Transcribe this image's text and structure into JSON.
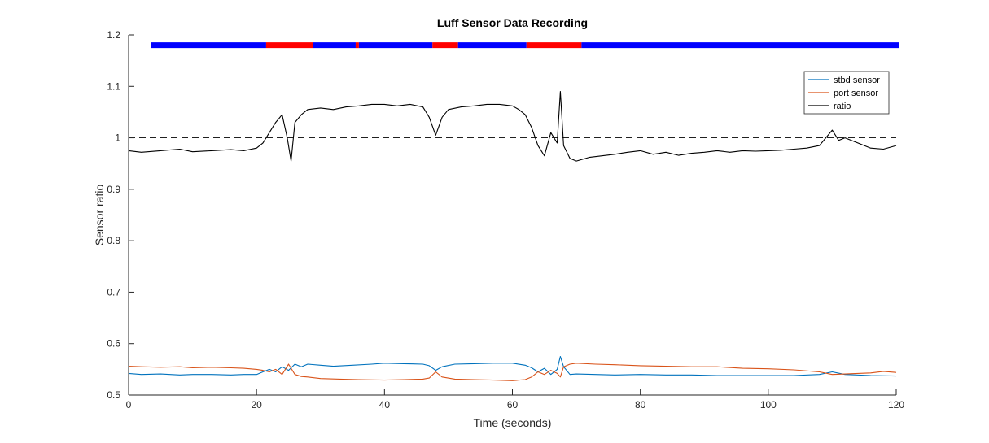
{
  "chart_data": {
    "type": "line",
    "title": "Luff Sensor Data Recording",
    "xlabel": "Time (seconds)",
    "ylabel": "Sensor ratio",
    "xlim": [
      0,
      120
    ],
    "ylim": [
      0.5,
      1.2
    ],
    "x_ticks": [
      "0",
      "20",
      "40",
      "60",
      "80",
      "100",
      "120"
    ],
    "y_ticks": [
      "0.5",
      "0.6",
      "0.7",
      "0.8",
      "0.9",
      "1",
      "1.1",
      "1.2"
    ],
    "grid": false,
    "legend_position": "top-right",
    "reference_line": {
      "y": 1.0,
      "style": "dashed",
      "color": "#000000"
    },
    "series": [
      {
        "name": "stbd sensor",
        "color": "#0072BD",
        "points": [
          [
            0,
            0.542
          ],
          [
            2,
            0.54
          ],
          [
            5,
            0.541
          ],
          [
            8,
            0.539
          ],
          [
            10,
            0.54
          ],
          [
            13,
            0.54
          ],
          [
            16,
            0.539
          ],
          [
            18,
            0.54
          ],
          [
            20,
            0.54
          ],
          [
            21,
            0.545
          ],
          [
            22,
            0.55
          ],
          [
            23,
            0.545
          ],
          [
            24,
            0.555
          ],
          [
            25,
            0.548
          ],
          [
            26,
            0.56
          ],
          [
            27,
            0.555
          ],
          [
            28,
            0.56
          ],
          [
            30,
            0.558
          ],
          [
            32,
            0.556
          ],
          [
            35,
            0.558
          ],
          [
            38,
            0.56
          ],
          [
            40,
            0.562
          ],
          [
            43,
            0.561
          ],
          [
            46,
            0.56
          ],
          [
            47,
            0.557
          ],
          [
            48,
            0.548
          ],
          [
            49,
            0.555
          ],
          [
            51,
            0.56
          ],
          [
            54,
            0.561
          ],
          [
            57,
            0.562
          ],
          [
            60,
            0.562
          ],
          [
            62,
            0.558
          ],
          [
            63,
            0.553
          ],
          [
            64,
            0.545
          ],
          [
            65,
            0.552
          ],
          [
            66,
            0.54
          ],
          [
            67,
            0.55
          ],
          [
            67.5,
            0.575
          ],
          [
            68,
            0.555
          ],
          [
            69,
            0.54
          ],
          [
            70,
            0.541
          ],
          [
            73,
            0.54
          ],
          [
            76,
            0.539
          ],
          [
            80,
            0.54
          ],
          [
            84,
            0.539
          ],
          [
            88,
            0.539
          ],
          [
            92,
            0.538
          ],
          [
            96,
            0.538
          ],
          [
            100,
            0.538
          ],
          [
            104,
            0.538
          ],
          [
            108,
            0.54
          ],
          [
            110,
            0.545
          ],
          [
            112,
            0.54
          ],
          [
            116,
            0.538
          ],
          [
            120,
            0.537
          ]
        ]
      },
      {
        "name": "port sensor",
        "color": "#D95319",
        "points": [
          [
            0,
            0.556
          ],
          [
            2,
            0.555
          ],
          [
            5,
            0.554
          ],
          [
            8,
            0.555
          ],
          [
            10,
            0.553
          ],
          [
            13,
            0.554
          ],
          [
            16,
            0.553
          ],
          [
            18,
            0.552
          ],
          [
            20,
            0.55
          ],
          [
            21,
            0.548
          ],
          [
            22,
            0.545
          ],
          [
            23,
            0.55
          ],
          [
            24,
            0.54
          ],
          [
            25,
            0.56
          ],
          [
            26,
            0.54
          ],
          [
            27,
            0.536
          ],
          [
            28,
            0.535
          ],
          [
            30,
            0.532
          ],
          [
            33,
            0.531
          ],
          [
            36,
            0.53
          ],
          [
            40,
            0.529
          ],
          [
            43,
            0.53
          ],
          [
            46,
            0.531
          ],
          [
            47,
            0.533
          ],
          [
            48,
            0.545
          ],
          [
            49,
            0.535
          ],
          [
            51,
            0.531
          ],
          [
            54,
            0.53
          ],
          [
            57,
            0.529
          ],
          [
            60,
            0.528
          ],
          [
            62,
            0.53
          ],
          [
            63,
            0.535
          ],
          [
            64,
            0.545
          ],
          [
            65,
            0.54
          ],
          [
            66,
            0.548
          ],
          [
            67,
            0.542
          ],
          [
            67.5,
            0.535
          ],
          [
            68,
            0.555
          ],
          [
            69,
            0.56
          ],
          [
            70,
            0.562
          ],
          [
            73,
            0.56
          ],
          [
            76,
            0.559
          ],
          [
            80,
            0.557
          ],
          [
            84,
            0.556
          ],
          [
            88,
            0.555
          ],
          [
            92,
            0.555
          ],
          [
            96,
            0.552
          ],
          [
            100,
            0.551
          ],
          [
            104,
            0.549
          ],
          [
            108,
            0.545
          ],
          [
            110,
            0.54
          ],
          [
            112,
            0.541
          ],
          [
            116,
            0.543
          ],
          [
            118,
            0.546
          ],
          [
            120,
            0.544
          ]
        ]
      },
      {
        "name": "ratio",
        "color": "#000000",
        "points": [
          [
            0,
            0.975
          ],
          [
            2,
            0.972
          ],
          [
            5,
            0.975
          ],
          [
            8,
            0.978
          ],
          [
            10,
            0.973
          ],
          [
            13,
            0.975
          ],
          [
            16,
            0.977
          ],
          [
            18,
            0.975
          ],
          [
            20,
            0.98
          ],
          [
            21,
            0.99
          ],
          [
            22,
            1.01
          ],
          [
            23,
            1.03
          ],
          [
            24,
            1.045
          ],
          [
            24.8,
            1.0
          ],
          [
            25.4,
            0.955
          ],
          [
            26,
            1.03
          ],
          [
            27,
            1.045
          ],
          [
            28,
            1.055
          ],
          [
            30,
            1.058
          ],
          [
            32,
            1.055
          ],
          [
            34,
            1.06
          ],
          [
            36,
            1.062
          ],
          [
            38,
            1.065
          ],
          [
            40,
            1.065
          ],
          [
            42,
            1.062
          ],
          [
            44,
            1.065
          ],
          [
            46,
            1.06
          ],
          [
            47,
            1.04
          ],
          [
            48,
            1.005
          ],
          [
            49,
            1.04
          ],
          [
            50,
            1.055
          ],
          [
            52,
            1.06
          ],
          [
            54,
            1.062
          ],
          [
            56,
            1.065
          ],
          [
            58,
            1.065
          ],
          [
            60,
            1.062
          ],
          [
            61,
            1.055
          ],
          [
            62,
            1.045
          ],
          [
            63,
            1.02
          ],
          [
            64,
            0.985
          ],
          [
            65,
            0.965
          ],
          [
            66,
            1.01
          ],
          [
            67,
            0.99
          ],
          [
            67.5,
            1.09
          ],
          [
            68,
            0.985
          ],
          [
            69,
            0.96
          ],
          [
            70,
            0.955
          ],
          [
            72,
            0.962
          ],
          [
            74,
            0.965
          ],
          [
            76,
            0.968
          ],
          [
            78,
            0.972
          ],
          [
            80,
            0.975
          ],
          [
            82,
            0.968
          ],
          [
            84,
            0.972
          ],
          [
            86,
            0.966
          ],
          [
            88,
            0.97
          ],
          [
            90,
            0.972
          ],
          [
            92,
            0.975
          ],
          [
            94,
            0.972
          ],
          [
            96,
            0.975
          ],
          [
            98,
            0.974
          ],
          [
            100,
            0.975
          ],
          [
            102,
            0.976
          ],
          [
            104,
            0.978
          ],
          [
            106,
            0.98
          ],
          [
            108,
            0.985
          ],
          [
            110,
            1.015
          ],
          [
            111,
            0.995
          ],
          [
            112,
            1.0
          ],
          [
            114,
            0.99
          ],
          [
            116,
            0.98
          ],
          [
            118,
            0.978
          ],
          [
            120,
            0.985
          ]
        ]
      }
    ],
    "state_bar": {
      "y": 1.18,
      "segments": [
        {
          "start": 3.5,
          "end": 21.5,
          "color": "#0000FF"
        },
        {
          "start": 21.5,
          "end": 28.8,
          "color": "#FF0000"
        },
        {
          "start": 28.8,
          "end": 35.5,
          "color": "#0000FF"
        },
        {
          "start": 35.5,
          "end": 36.0,
          "color": "#FF0000"
        },
        {
          "start": 36.0,
          "end": 47.5,
          "color": "#0000FF"
        },
        {
          "start": 47.5,
          "end": 51.5,
          "color": "#FF0000"
        },
        {
          "start": 51.5,
          "end": 62.2,
          "color": "#0000FF"
        },
        {
          "start": 62.2,
          "end": 70.8,
          "color": "#FF0000"
        },
        {
          "start": 70.8,
          "end": 120.5,
          "color": "#0000FF"
        }
      ]
    }
  }
}
